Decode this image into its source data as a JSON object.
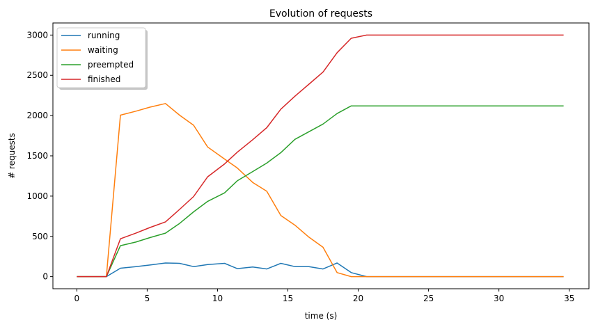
{
  "chart_data": {
    "type": "line",
    "title": "Evolution of requests",
    "xlabel": "time (s)",
    "ylabel": "# requests",
    "xlim": [
      -1.7,
      36.4
    ],
    "ylim": [
      -150,
      3150
    ],
    "xticks": [
      0,
      5,
      10,
      15,
      20,
      25,
      30,
      35
    ],
    "yticks": [
      0,
      500,
      1000,
      1500,
      2000,
      2500,
      3000
    ],
    "grid": false,
    "legend_position": "top-left",
    "x": [
      0,
      1.1,
      2.1,
      3.1,
      4.2,
      5.2,
      6.3,
      7.3,
      8.3,
      9.3,
      10.5,
      11.4,
      12.5,
      13.5,
      14.5,
      15.5,
      16.5,
      17.5,
      18.5,
      19.5,
      20.6,
      21.6,
      22.6,
      23.6,
      24.6,
      25.6,
      26.6,
      27.6,
      28.6,
      29.6,
      30.6,
      31.6,
      32.6,
      33.6,
      34.6
    ],
    "series": [
      {
        "name": "running",
        "color": "#1f77b4",
        "values": [
          0,
          0,
          0,
          105,
          125,
          145,
          170,
          165,
          125,
          150,
          165,
          100,
          120,
          95,
          165,
          125,
          125,
          95,
          170,
          50,
          0,
          0,
          0,
          0,
          0,
          0,
          0,
          0,
          0,
          0,
          0,
          0,
          0,
          0,
          0
        ]
      },
      {
        "name": "waiting",
        "color": "#ff7f0e",
        "values": [
          0,
          0,
          0,
          2005,
          2055,
          2105,
          2150,
          2005,
          1880,
          1610,
          1460,
          1350,
          1170,
          1060,
          760,
          640,
          490,
          365,
          50,
          0,
          0,
          0,
          0,
          0,
          0,
          0,
          0,
          0,
          0,
          0,
          0,
          0,
          0,
          0,
          0
        ]
      },
      {
        "name": "preempted",
        "color": "#2ca02c",
        "values": [
          0,
          0,
          0,
          385,
          430,
          485,
          540,
          660,
          805,
          935,
          1040,
          1190,
          1305,
          1410,
          1540,
          1705,
          1800,
          1895,
          2025,
          2120,
          2120,
          2120,
          2120,
          2120,
          2120,
          2120,
          2120,
          2120,
          2120,
          2120,
          2120,
          2120,
          2120,
          2120,
          2120
        ]
      },
      {
        "name": "finished",
        "color": "#d62728",
        "values": [
          0,
          0,
          0,
          470,
          540,
          610,
          680,
          835,
          995,
          1240,
          1400,
          1545,
          1700,
          1850,
          2080,
          2240,
          2390,
          2540,
          2780,
          2960,
          3000,
          3000,
          3000,
          3000,
          3000,
          3000,
          3000,
          3000,
          3000,
          3000,
          3000,
          3000,
          3000,
          3000,
          3000
        ]
      }
    ]
  }
}
